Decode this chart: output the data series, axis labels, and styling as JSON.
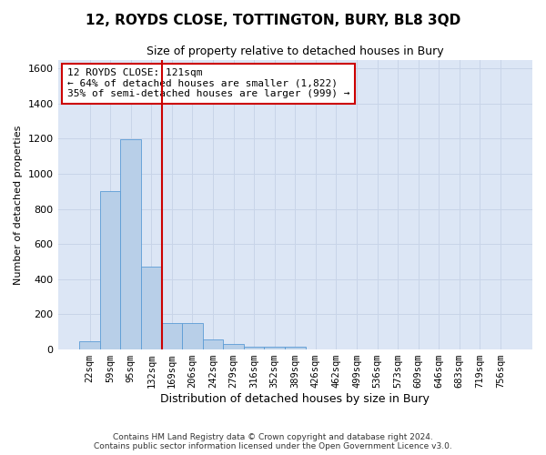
{
  "title": "12, ROYDS CLOSE, TOTTINGTON, BURY, BL8 3QD",
  "subtitle": "Size of property relative to detached houses in Bury",
  "xlabel": "Distribution of detached houses by size in Bury",
  "ylabel": "Number of detached properties",
  "footer_line1": "Contains HM Land Registry data © Crown copyright and database right 2024.",
  "footer_line2": "Contains public sector information licensed under the Open Government Licence v3.0.",
  "bar_color": "#b8cfe8",
  "bar_edge_color": "#5b9bd5",
  "vline_color": "#cc0000",
  "vline_x": 3.5,
  "annotation_text": "12 ROYDS CLOSE: 121sqm\n← 64% of detached houses are smaller (1,822)\n35% of semi-detached houses are larger (999) →",
  "annotation_box_color": "#cc0000",
  "grid_color": "#c8d4e8",
  "background_color": "#dce6f5",
  "ylim": [
    0,
    1650
  ],
  "yticks": [
    0,
    200,
    400,
    600,
    800,
    1000,
    1200,
    1400,
    1600
  ],
  "bin_labels": [
    "22sqm",
    "59sqm",
    "95sqm",
    "132sqm",
    "169sqm",
    "206sqm",
    "242sqm",
    "279sqm",
    "316sqm",
    "352sqm",
    "389sqm",
    "426sqm",
    "462sqm",
    "499sqm",
    "536sqm",
    "573sqm",
    "609sqm",
    "646sqm",
    "683sqm",
    "719sqm",
    "756sqm"
  ],
  "bar_heights": [
    45,
    900,
    1195,
    470,
    150,
    150,
    55,
    30,
    18,
    18,
    18,
    0,
    0,
    0,
    0,
    0,
    0,
    0,
    0,
    0,
    0
  ],
  "num_bins": 21,
  "figwidth": 6.0,
  "figheight": 5.0,
  "dpi": 100
}
